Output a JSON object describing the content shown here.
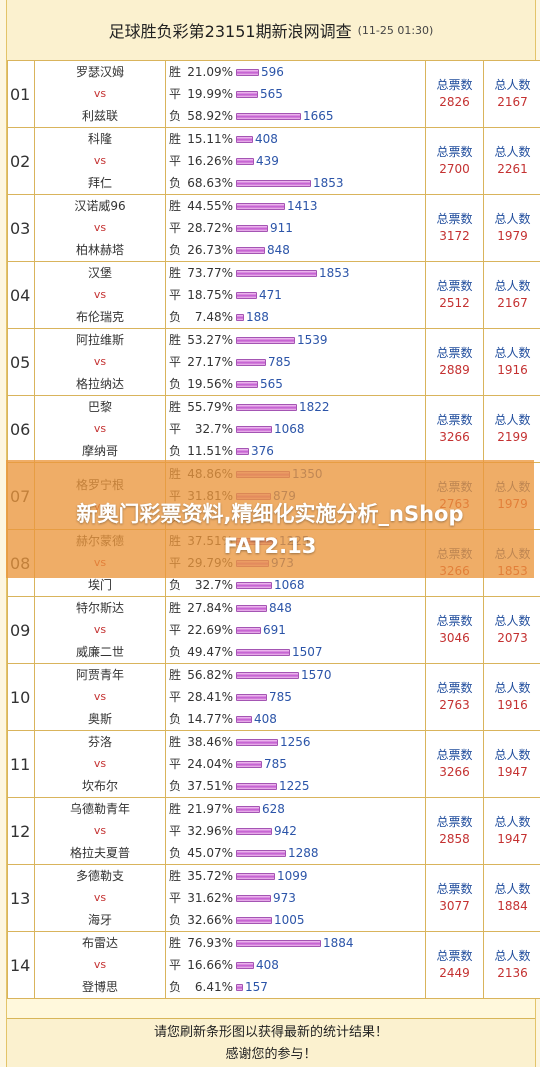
{
  "header": {
    "title": "足球胜负彩第23151期新浪网调查",
    "time": "(11-25 01:30)"
  },
  "labels": {
    "win": "胜",
    "draw": "平",
    "loss": "负",
    "vs": "vs",
    "total_votes": "总票数",
    "total_people": "总人数"
  },
  "matches": [
    {
      "num": "01",
      "home": "罗瑟汉姆",
      "away": "利兹联",
      "win": {
        "pct": "21.09%",
        "count": "596"
      },
      "draw": {
        "pct": "19.99%",
        "count": "565"
      },
      "loss": {
        "pct": "58.92%",
        "count": "1665"
      },
      "votes": "2826",
      "people": "2167"
    },
    {
      "num": "02",
      "home": "科隆",
      "away": "拜仁",
      "win": {
        "pct": "15.11%",
        "count": "408"
      },
      "draw": {
        "pct": "16.26%",
        "count": "439"
      },
      "loss": {
        "pct": "68.63%",
        "count": "1853"
      },
      "votes": "2700",
      "people": "2261"
    },
    {
      "num": "03",
      "home": "汉诺威96",
      "away": "柏林赫塔",
      "win": {
        "pct": "44.55%",
        "count": "1413"
      },
      "draw": {
        "pct": "28.72%",
        "count": "911"
      },
      "loss": {
        "pct": "26.73%",
        "count": "848"
      },
      "votes": "3172",
      "people": "1979"
    },
    {
      "num": "04",
      "home": "汉堡",
      "away": "布伦瑞克",
      "win": {
        "pct": "73.77%",
        "count": "1853"
      },
      "draw": {
        "pct": "18.75%",
        "count": "471"
      },
      "loss": {
        "pct": "7.48%",
        "count": "188"
      },
      "votes": "2512",
      "people": "2167"
    },
    {
      "num": "05",
      "home": "阿拉维斯",
      "away": "格拉纳达",
      "win": {
        "pct": "53.27%",
        "count": "1539"
      },
      "draw": {
        "pct": "27.17%",
        "count": "785"
      },
      "loss": {
        "pct": "19.56%",
        "count": "565"
      },
      "votes": "2889",
      "people": "1916"
    },
    {
      "num": "06",
      "home": "巴黎",
      "away": "摩纳哥",
      "win": {
        "pct": "55.79%",
        "count": "1822"
      },
      "draw": {
        "pct": "32.7%",
        "count": "1068"
      },
      "loss": {
        "pct": "11.51%",
        "count": "376"
      },
      "votes": "3266",
      "people": "2199"
    },
    {
      "num": "07",
      "home": "格罗宁根",
      "away": "",
      "win": {
        "pct": "48.86%",
        "count": "1350"
      },
      "draw": {
        "pct": "31.81%",
        "count": "879"
      },
      "loss": {
        "pct": "",
        "count": ""
      },
      "votes": "2763",
      "people": "1979"
    },
    {
      "num": "08",
      "home": "赫尔蒙德",
      "away": "埃门",
      "win": {
        "pct": "37.51%",
        "count": "1225"
      },
      "draw": {
        "pct": "29.79%",
        "count": "973"
      },
      "loss": {
        "pct": "32.7%",
        "count": "1068"
      },
      "votes": "3266",
      "people": "1853"
    },
    {
      "num": "09",
      "home": "特尔斯达",
      "away": "威廉二世",
      "win": {
        "pct": "27.84%",
        "count": "848"
      },
      "draw": {
        "pct": "22.69%",
        "count": "691"
      },
      "loss": {
        "pct": "49.47%",
        "count": "1507"
      },
      "votes": "3046",
      "people": "2073"
    },
    {
      "num": "10",
      "home": "阿贾青年",
      "away": "奥斯",
      "win": {
        "pct": "56.82%",
        "count": "1570"
      },
      "draw": {
        "pct": "28.41%",
        "count": "785"
      },
      "loss": {
        "pct": "14.77%",
        "count": "408"
      },
      "votes": "2763",
      "people": "1916"
    },
    {
      "num": "11",
      "home": "芬洛",
      "away": "坎布尔",
      "win": {
        "pct": "38.46%",
        "count": "1256"
      },
      "draw": {
        "pct": "24.04%",
        "count": "785"
      },
      "loss": {
        "pct": "37.51%",
        "count": "1225"
      },
      "votes": "3266",
      "people": "1947"
    },
    {
      "num": "12",
      "home": "乌德勒青年",
      "away": "格拉夫夏普",
      "win": {
        "pct": "21.97%",
        "count": "628"
      },
      "draw": {
        "pct": "32.96%",
        "count": "942"
      },
      "loss": {
        "pct": "45.07%",
        "count": "1288"
      },
      "votes": "2858",
      "people": "1947"
    },
    {
      "num": "13",
      "home": "多德勒支",
      "away": "海牙",
      "win": {
        "pct": "35.72%",
        "count": "1099"
      },
      "draw": {
        "pct": "31.62%",
        "count": "973"
      },
      "loss": {
        "pct": "32.66%",
        "count": "1005"
      },
      "votes": "3077",
      "people": "1884"
    },
    {
      "num": "14",
      "home": "布雷达",
      "away": "登博思",
      "win": {
        "pct": "76.93%",
        "count": "1884"
      },
      "draw": {
        "pct": "16.66%",
        "count": "408"
      },
      "loss": {
        "pct": "6.41%",
        "count": "157"
      },
      "votes": "2449",
      "people": "2136"
    }
  ],
  "footer": {
    "line1": "请您刷新条形图以获得最新的统计结果！",
    "line2": "感谢您的参与！"
  },
  "overlay": {
    "line1": "新奥门彩票资料,精细化实施分析_nShop",
    "line2": "FAT2.13"
  },
  "colors": {
    "vote_value": "#c43131",
    "vote_label": "#1f4c9c",
    "bar": "#c25bd0"
  }
}
